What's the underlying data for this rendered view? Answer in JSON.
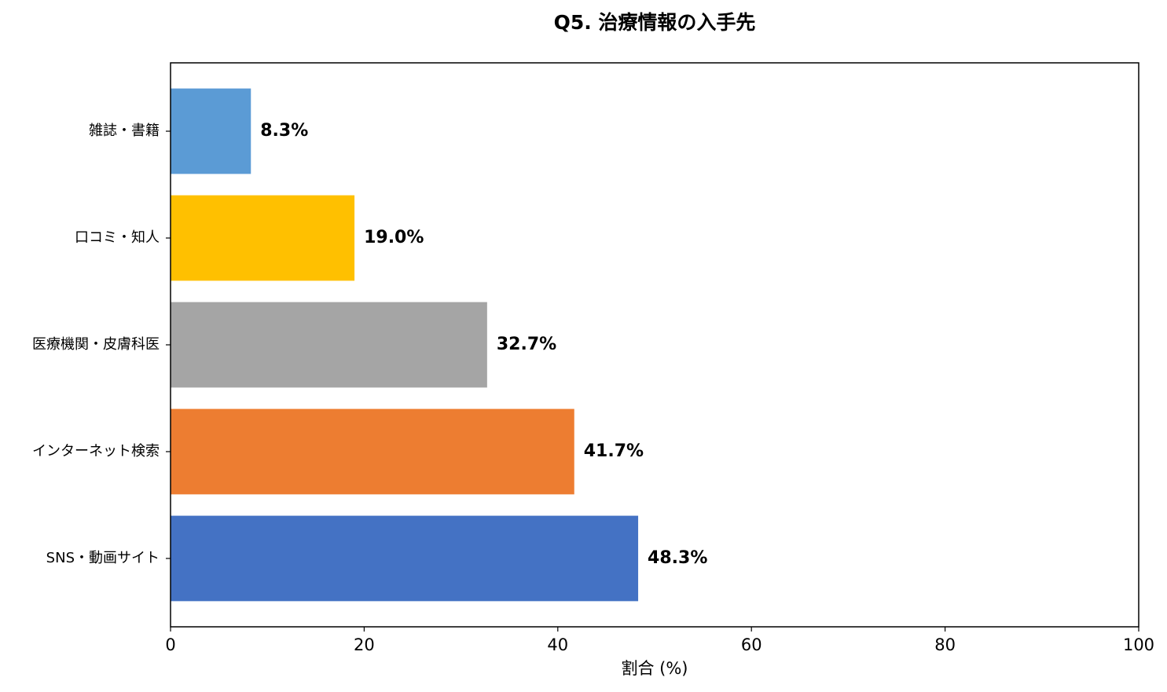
{
  "chart_data": {
    "type": "barh",
    "title": "Q5. 治療情報の入手先",
    "xlabel": "割合 (%)",
    "categories": [
      "SNS・動画サイト",
      "インターネット検索",
      "医療機関・皮膚科医",
      "口コミ・知人",
      "雑誌・書籍"
    ],
    "values": [
      48.3,
      41.7,
      32.7,
      19.0,
      8.3
    ],
    "value_labels": [
      "48.3%",
      "41.7%",
      "32.7%",
      "19.0%",
      "8.3%"
    ],
    "colors": [
      "#4472c4",
      "#ed7d31",
      "#a5a5a5",
      "#ffc000",
      "#5b9bd5"
    ],
    "xlim": [
      0,
      100
    ],
    "xticks": [
      0,
      20,
      40,
      60,
      80,
      100
    ],
    "grid": false
  }
}
